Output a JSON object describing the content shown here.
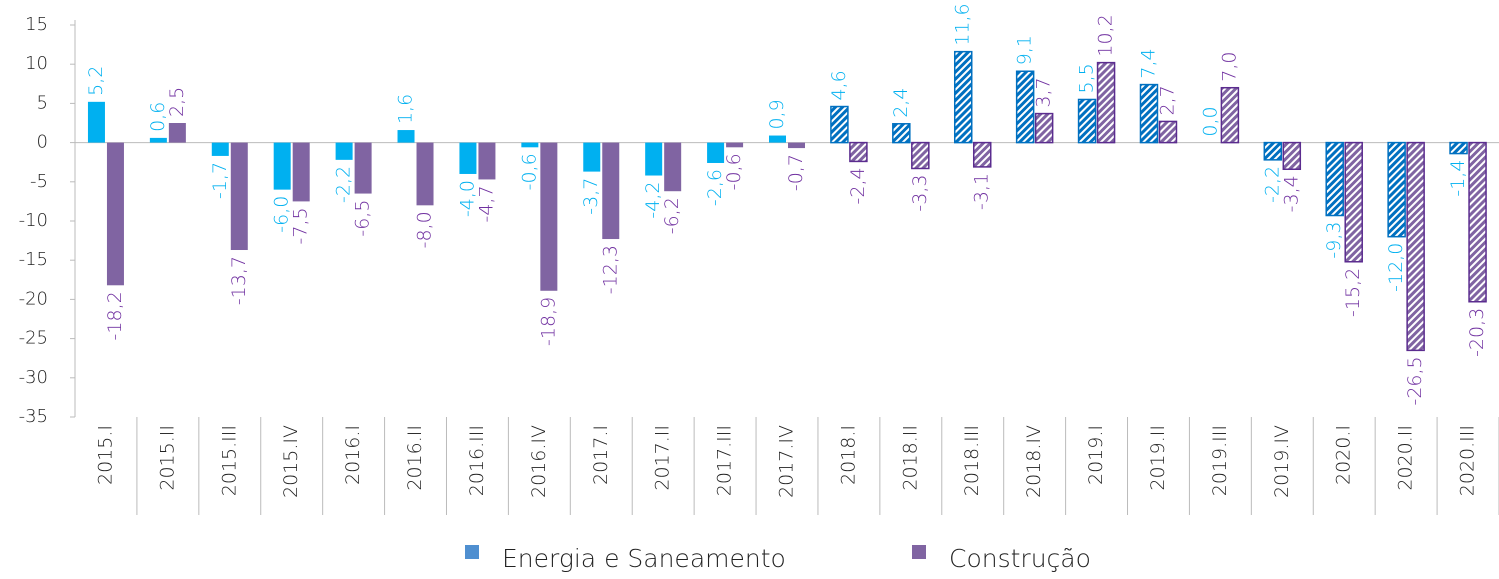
{
  "chart_data": {
    "type": "bar",
    "categories": [
      "2015.I",
      "2015.II",
      "2015.III",
      "2015.IV",
      "2016.I",
      "2016.II",
      "2016.III",
      "2016.IV",
      "2017.I",
      "2017.II",
      "2017.III",
      "2017.IV",
      "2018.I",
      "2018.II",
      "2018.III",
      "2018.IV",
      "2019.I",
      "2019.II",
      "2019.III",
      "2019.IV",
      "2020.I",
      "2020.II",
      "2020.III"
    ],
    "series": [
      {
        "name": "Energia e Saneamento",
        "color": "#00b0f0",
        "values": [
          5.2,
          0.6,
          -1.7,
          -6.0,
          -2.2,
          1.6,
          -4.0,
          -0.6,
          -3.7,
          -4.2,
          -2.6,
          0.9,
          4.6,
          2.4,
          11.6,
          9.1,
          5.5,
          7.4,
          0.0,
          -2.2,
          -9.3,
          -12.0,
          -1.4
        ],
        "value_labels": [
          "5,2",
          "0,6",
          "-1,7",
          "-6,0",
          "-2,2",
          "1,6",
          "-4,0",
          "-0,6",
          "-3,7",
          "-4,2",
          "-2,6",
          "0,9",
          "4,6",
          "2,4",
          "11,6",
          "9,1",
          "5,5",
          "7,4",
          "0,0",
          "-2,2",
          "-9,3",
          "-12,0",
          "-1,4"
        ]
      },
      {
        "name": "Construção",
        "color": "#8064a2",
        "values": [
          -18.2,
          2.5,
          -13.7,
          -7.5,
          -6.5,
          -8.0,
          -4.7,
          -18.9,
          -12.3,
          -6.2,
          -0.6,
          -0.7,
          -2.4,
          -3.3,
          -3.1,
          3.7,
          10.2,
          2.7,
          7.0,
          -3.4,
          -15.2,
          -26.5,
          -20.3
        ],
        "value_labels": [
          "-18,2",
          "2,5",
          "-13,7",
          "-7,5",
          "-6,5",
          "-8,0",
          "-4,7",
          "-18,9",
          "-12,3",
          "-6,2",
          "-0,6",
          "-0,7",
          "-2,4",
          "-3,3",
          "-3,1",
          "3,7",
          "10,2",
          "2,7",
          "7,0",
          "-3,4",
          "-15,2",
          "-26,5",
          "-20,3"
        ]
      }
    ],
    "hatched_from": "2018.I",
    "ylim": [
      -35,
      15
    ],
    "yticks": [
      -35,
      -30,
      -25,
      -20,
      -15,
      -10,
      -5,
      0,
      5,
      10,
      15
    ],
    "legend": "bottom"
  }
}
